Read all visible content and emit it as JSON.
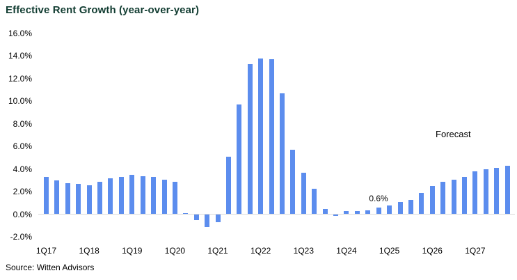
{
  "chart_data": {
    "type": "bar",
    "title": "Effective Rent Growth (year-over-year)",
    "categories": [
      "1Q17",
      "2Q17",
      "3Q17",
      "4Q17",
      "1Q18",
      "2Q18",
      "3Q18",
      "4Q18",
      "1Q19",
      "2Q19",
      "3Q19",
      "4Q19",
      "1Q20",
      "2Q20",
      "3Q20",
      "4Q20",
      "1Q21",
      "2Q21",
      "3Q21",
      "4Q21",
      "1Q22",
      "2Q22",
      "3Q22",
      "4Q22",
      "1Q23",
      "2Q23",
      "3Q23",
      "4Q23",
      "1Q24",
      "2Q24",
      "3Q24",
      "4Q24",
      "1Q25",
      "2Q25",
      "3Q25",
      "4Q25",
      "1Q26",
      "2Q26",
      "3Q26",
      "4Q26",
      "1Q27",
      "2Q27",
      "3Q27",
      "4Q27"
    ],
    "values": [
      3.3,
      3.0,
      2.8,
      2.7,
      2.6,
      2.9,
      3.2,
      3.3,
      3.5,
      3.4,
      3.3,
      3.1,
      2.9,
      0.1,
      -0.5,
      -1.1,
      -0.7,
      5.1,
      9.7,
      13.3,
      13.8,
      13.7,
      10.7,
      5.7,
      3.7,
      2.3,
      0.5,
      -0.1,
      0.3,
      0.3,
      0.4,
      0.6,
      0.8,
      1.1,
      1.3,
      1.9,
      2.5,
      2.9,
      3.1,
      3.3,
      3.8,
      4.0,
      4.1,
      4.3
    ],
    "x_tick_labels": [
      "1Q17",
      "1Q18",
      "1Q19",
      "1Q20",
      "1Q21",
      "1Q22",
      "1Q23",
      "1Q24",
      "1Q25",
      "1Q26",
      "1Q27"
    ],
    "x_tick_every_n_bars": 4,
    "y_tick_labels": [
      "16.0%",
      "14.0%",
      "12.0%",
      "10.0%",
      "8.0%",
      "6.0%",
      "4.0%",
      "2.0%",
      "0.0%",
      "-2.0%"
    ],
    "y_tick_values": [
      16,
      14,
      12,
      10,
      8,
      6,
      4,
      2,
      0,
      -2
    ],
    "ylim": [
      -2,
      16
    ],
    "grid": false,
    "legend": false,
    "annotations": {
      "forecast_label": "Forecast",
      "value_callout": {
        "text": "0.6%",
        "target_category": "4Q24"
      }
    }
  },
  "source_note": "Source: Witten Advisors",
  "colors": {
    "bar": "#5C8DEE",
    "title_text": "#113C31",
    "axis_text": "#000000",
    "baseline": "#D9D9D9",
    "background": "#FFFFFF"
  }
}
